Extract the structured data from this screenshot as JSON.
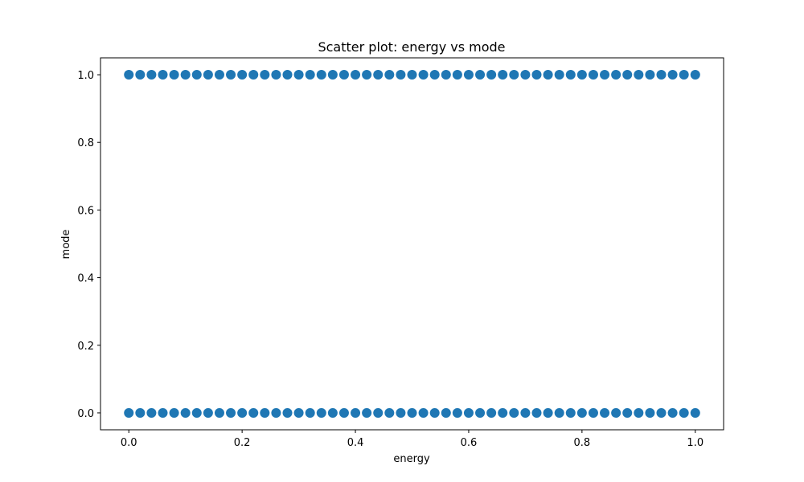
{
  "chart_data": {
    "type": "scatter",
    "title": "Scatter plot: energy vs mode",
    "xlabel": "energy",
    "ylabel": "mode",
    "xlim": [
      -0.05,
      1.05
    ],
    "ylim": [
      -0.05,
      1.05
    ],
    "xticks": [
      "0.0",
      "0.2",
      "0.4",
      "0.6",
      "0.8",
      "1.0"
    ],
    "yticks": [
      "0.0",
      "0.2",
      "0.4",
      "0.6",
      "0.8",
      "1.0"
    ],
    "grid": false,
    "color": "#1f77b4",
    "series": [
      {
        "x": [
          0.0,
          0.02,
          0.04,
          0.06,
          0.08,
          0.1,
          0.12,
          0.14,
          0.16,
          0.18,
          0.2,
          0.22,
          0.24,
          0.26,
          0.28,
          0.3,
          0.32,
          0.34,
          0.36,
          0.38,
          0.4,
          0.42,
          0.44,
          0.46,
          0.48,
          0.5,
          0.52,
          0.54,
          0.56,
          0.58,
          0.6,
          0.62,
          0.64,
          0.66,
          0.68,
          0.7,
          0.72,
          0.74,
          0.76,
          0.78,
          0.8,
          0.82,
          0.84,
          0.86,
          0.88,
          0.9,
          0.92,
          0.94,
          0.96,
          0.98,
          1.0,
          0.0,
          0.02,
          0.04,
          0.06,
          0.08,
          0.1,
          0.12,
          0.14,
          0.16,
          0.18,
          0.2,
          0.22,
          0.24,
          0.26,
          0.28,
          0.3,
          0.32,
          0.34,
          0.36,
          0.38,
          0.4,
          0.42,
          0.44,
          0.46,
          0.48,
          0.5,
          0.52,
          0.54,
          0.56,
          0.58,
          0.6,
          0.62,
          0.64,
          0.66,
          0.68,
          0.7,
          0.72,
          0.74,
          0.76,
          0.78,
          0.8,
          0.82,
          0.84,
          0.86,
          0.88,
          0.9,
          0.92,
          0.94,
          0.96,
          0.98,
          1.0
        ],
        "y": [
          1,
          1,
          1,
          1,
          1,
          1,
          1,
          1,
          1,
          1,
          1,
          1,
          1,
          1,
          1,
          1,
          1,
          1,
          1,
          1,
          1,
          1,
          1,
          1,
          1,
          1,
          1,
          1,
          1,
          1,
          1,
          1,
          1,
          1,
          1,
          1,
          1,
          1,
          1,
          1,
          1,
          1,
          1,
          1,
          1,
          1,
          1,
          1,
          1,
          1,
          1,
          0,
          0,
          0,
          0,
          0,
          0,
          0,
          0,
          0,
          0,
          0,
          0,
          0,
          0,
          0,
          0,
          0,
          0,
          0,
          0,
          0,
          0,
          0,
          0,
          0,
          0,
          0,
          0,
          0,
          0,
          0,
          0,
          0,
          0,
          0,
          0,
          0,
          0,
          0,
          0,
          0,
          0,
          0,
          0,
          0,
          0,
          0,
          0,
          0,
          0,
          0
        ]
      }
    ]
  }
}
